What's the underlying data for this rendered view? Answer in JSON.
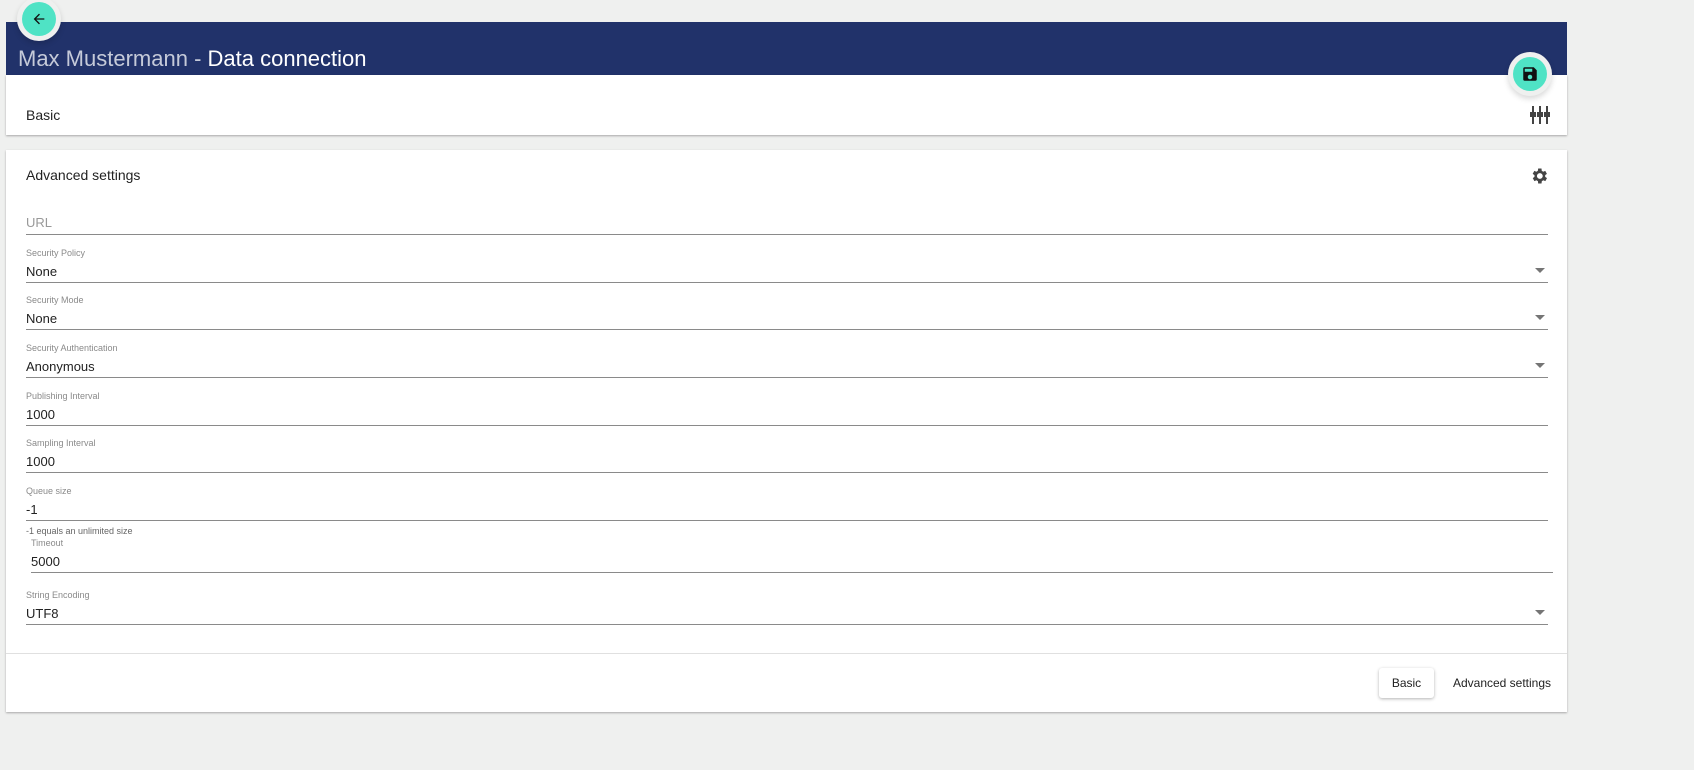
{
  "header": {
    "user": "Max Mustermann",
    "separator": " - ",
    "title": "Data connection"
  },
  "basic_card": {
    "title": "Basic"
  },
  "advanced_card": {
    "title": "Advanced settings"
  },
  "fields": {
    "url": {
      "placeholder": "URL"
    },
    "security_policy": {
      "label": "Security Policy",
      "value": "None"
    },
    "security_mode": {
      "label": "Security Mode",
      "value": "None"
    },
    "security_authentication": {
      "label": "Security Authentication",
      "value": "Anonymous"
    },
    "publishing_interval": {
      "label": "Publishing Interval",
      "value": "1000"
    },
    "sampling_interval": {
      "label": "Sampling Interval",
      "value": "1000"
    },
    "queue_size": {
      "label": "Queue size",
      "value": "-1",
      "hint": "-1 equals an unlimited size"
    },
    "timeout": {
      "label": "Timeout",
      "value": "5000"
    },
    "string_encoding": {
      "label": "String Encoding",
      "value": "UTF8"
    }
  },
  "footer": {
    "basic_label": "Basic",
    "advanced_label": "Advanced settings"
  },
  "colors": {
    "header": "#21326a",
    "accent": "#4fe3c5",
    "background": "#eff0ef"
  }
}
